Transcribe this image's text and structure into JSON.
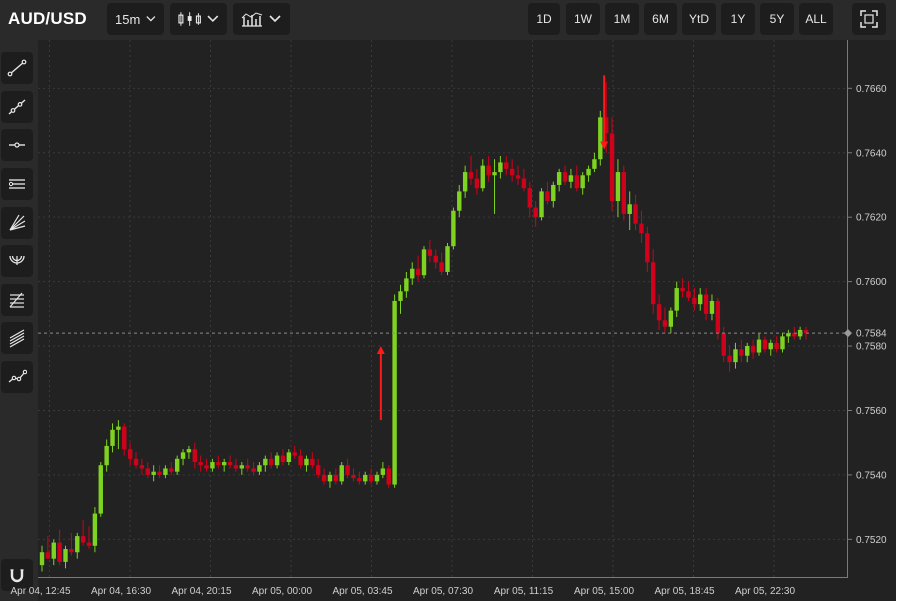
{
  "header": {
    "symbol": "AUD/USD",
    "interval": "15m",
    "chart_type_icon": "candlestick-icon",
    "indicator_icon": "indicators-icon",
    "ranges": [
      "1D",
      "1W",
      "1M",
      "6M",
      "YtD",
      "1Y",
      "5Y",
      "ALL"
    ],
    "fullscreen_icon": "fullscreen-icon"
  },
  "toolbar": {
    "tools": [
      "trend-line-icon",
      "ray-icon",
      "horizontal-line-icon",
      "parallel-channel-icon",
      "fan-icon",
      "arc-icon",
      "fibonacci-icon",
      "pitchfork-icon",
      "path-icon"
    ],
    "magnet_icon": "magnet-icon"
  },
  "colors": {
    "background": "#222222",
    "up": "#7ed321",
    "down": "#d0021b",
    "arrow": "#ff1a1a",
    "text": "#cfcfcf"
  },
  "chart_data": {
    "type": "candlestick",
    "symbol": "AUD/USD",
    "interval": "15m",
    "ylim": [
      0.7508,
      0.7675
    ],
    "y_ticks": [
      "0.7520",
      "0.7540",
      "0.7560",
      "0.7580",
      "0.7600",
      "0.7620",
      "0.7640",
      "0.7660"
    ],
    "x_ticks": [
      "Apr 04, 12:45",
      "Apr 04, 16:30",
      "Apr 04, 20:15",
      "Apr 05, 00:00",
      "Apr 05, 03:45",
      "Apr 05, 07:30",
      "Apr 05, 11:15",
      "Apr 05, 15:00",
      "Apr 05, 18:45",
      "Apr 05, 22:30"
    ],
    "current_price": "0.7584",
    "current_price_value": 0.7584,
    "grid": true,
    "candles": [
      [
        0.7512,
        0.7518,
        0.751,
        0.7516
      ],
      [
        0.7516,
        0.7521,
        0.7514,
        0.7514
      ],
      [
        0.7514,
        0.752,
        0.7512,
        0.7519
      ],
      [
        0.7519,
        0.7523,
        0.7512,
        0.7513
      ],
      [
        0.7513,
        0.7518,
        0.7511,
        0.7517
      ],
      [
        0.7517,
        0.7522,
        0.7515,
        0.7516
      ],
      [
        0.7516,
        0.7522,
        0.7514,
        0.7521
      ],
      [
        0.7521,
        0.7526,
        0.7518,
        0.7519
      ],
      [
        0.7519,
        0.7524,
        0.7517,
        0.7518
      ],
      [
        0.7518,
        0.753,
        0.7516,
        0.7528
      ],
      [
        0.7528,
        0.7544,
        0.7527,
        0.7543
      ],
      [
        0.7543,
        0.7551,
        0.7541,
        0.7549
      ],
      [
        0.7549,
        0.7556,
        0.7547,
        0.7554
      ],
      [
        0.7554,
        0.7557,
        0.7548,
        0.7555
      ],
      [
        0.7555,
        0.7556,
        0.7546,
        0.7548
      ],
      [
        0.7548,
        0.755,
        0.7543,
        0.7545
      ],
      [
        0.7545,
        0.7547,
        0.7542,
        0.7543
      ],
      [
        0.7543,
        0.7545,
        0.754,
        0.7542
      ],
      [
        0.7542,
        0.7544,
        0.7539,
        0.754
      ],
      [
        0.754,
        0.7543,
        0.7538,
        0.7541
      ],
      [
        0.7541,
        0.7543,
        0.7539,
        0.754
      ],
      [
        0.754,
        0.7543,
        0.7539,
        0.7542
      ],
      [
        0.7542,
        0.7544,
        0.754,
        0.7541
      ],
      [
        0.7541,
        0.7546,
        0.754,
        0.7545
      ],
      [
        0.7545,
        0.7548,
        0.7543,
        0.7547
      ],
      [
        0.7547,
        0.7549,
        0.7545,
        0.7548
      ],
      [
        0.7548,
        0.755,
        0.7542,
        0.7544
      ],
      [
        0.7544,
        0.7546,
        0.7541,
        0.7543
      ],
      [
        0.7543,
        0.7545,
        0.7541,
        0.7542
      ],
      [
        0.7542,
        0.7545,
        0.7541,
        0.7544
      ],
      [
        0.7544,
        0.7546,
        0.7542,
        0.7543
      ],
      [
        0.7543,
        0.7545,
        0.7541,
        0.7544
      ],
      [
        0.7544,
        0.7546,
        0.7542,
        0.7543
      ],
      [
        0.7543,
        0.7545,
        0.7541,
        0.7542
      ],
      [
        0.7542,
        0.7544,
        0.754,
        0.7543
      ],
      [
        0.7543,
        0.7545,
        0.7541,
        0.7542
      ],
      [
        0.7542,
        0.7544,
        0.754,
        0.7541
      ],
      [
        0.7541,
        0.7544,
        0.754,
        0.7543
      ],
      [
        0.7543,
        0.7546,
        0.7541,
        0.7545
      ],
      [
        0.7545,
        0.7547,
        0.7542,
        0.7543
      ],
      [
        0.7543,
        0.7547,
        0.7542,
        0.7546
      ],
      [
        0.7546,
        0.7548,
        0.7543,
        0.7544
      ],
      [
        0.7544,
        0.7548,
        0.7543,
        0.7547
      ],
      [
        0.7547,
        0.7549,
        0.7545,
        0.7546
      ],
      [
        0.7546,
        0.7548,
        0.7542,
        0.7543
      ],
      [
        0.7543,
        0.7546,
        0.7541,
        0.7545
      ],
      [
        0.7545,
        0.7547,
        0.7542,
        0.7543
      ],
      [
        0.7543,
        0.7545,
        0.7539,
        0.754
      ],
      [
        0.754,
        0.7542,
        0.7537,
        0.7538
      ],
      [
        0.7538,
        0.7541,
        0.7536,
        0.754
      ],
      [
        0.754,
        0.7542,
        0.7537,
        0.7538
      ],
      [
        0.7538,
        0.7544,
        0.7537,
        0.7543
      ],
      [
        0.7543,
        0.7545,
        0.7539,
        0.754
      ],
      [
        0.754,
        0.7542,
        0.7538,
        0.7539
      ],
      [
        0.7539,
        0.7541,
        0.7537,
        0.7538
      ],
      [
        0.7538,
        0.7541,
        0.7537,
        0.754
      ],
      [
        0.754,
        0.7542,
        0.7537,
        0.7538
      ],
      [
        0.7538,
        0.7541,
        0.7537,
        0.754
      ],
      [
        0.754,
        0.7544,
        0.7539,
        0.7542
      ],
      [
        0.7542,
        0.7543,
        0.7536,
        0.7537
      ],
      [
        0.7537,
        0.7596,
        0.7536,
        0.7594
      ],
      [
        0.7594,
        0.7599,
        0.759,
        0.7597
      ],
      [
        0.7597,
        0.7603,
        0.7595,
        0.7601
      ],
      [
        0.7601,
        0.7606,
        0.7599,
        0.7604
      ],
      [
        0.7604,
        0.7608,
        0.76,
        0.7602
      ],
      [
        0.7602,
        0.7611,
        0.7601,
        0.761
      ],
      [
        0.761,
        0.7613,
        0.7606,
        0.7608
      ],
      [
        0.7608,
        0.761,
        0.7604,
        0.7606
      ],
      [
        0.7606,
        0.7609,
        0.7602,
        0.7603
      ],
      [
        0.7603,
        0.7612,
        0.7602,
        0.7611
      ],
      [
        0.7611,
        0.7623,
        0.761,
        0.7622
      ],
      [
        0.7622,
        0.763,
        0.762,
        0.7628
      ],
      [
        0.7628,
        0.7636,
        0.7626,
        0.7634
      ],
      [
        0.7634,
        0.7639,
        0.763,
        0.7632
      ],
      [
        0.7632,
        0.7635,
        0.7627,
        0.7629
      ],
      [
        0.7629,
        0.7638,
        0.7628,
        0.7636
      ],
      [
        0.7636,
        0.7639,
        0.7631,
        0.7633
      ],
      [
        0.7633,
        0.7638,
        0.7621,
        0.7634
      ],
      [
        0.7634,
        0.7639,
        0.7632,
        0.7637
      ],
      [
        0.7637,
        0.7639,
        0.7633,
        0.7635
      ],
      [
        0.7635,
        0.7638,
        0.7631,
        0.7633
      ],
      [
        0.7633,
        0.7636,
        0.763,
        0.7632
      ],
      [
        0.7632,
        0.7635,
        0.7628,
        0.7629
      ],
      [
        0.7629,
        0.7631,
        0.762,
        0.7623
      ],
      [
        0.7623,
        0.7625,
        0.7617,
        0.762
      ],
      [
        0.762,
        0.7629,
        0.7619,
        0.7628
      ],
      [
        0.7628,
        0.7631,
        0.7624,
        0.7625
      ],
      [
        0.7625,
        0.7631,
        0.7623,
        0.763
      ],
      [
        0.763,
        0.7635,
        0.7628,
        0.7634
      ],
      [
        0.7634,
        0.7636,
        0.763,
        0.7631
      ],
      [
        0.7631,
        0.7635,
        0.7629,
        0.7633
      ],
      [
        0.7633,
        0.7636,
        0.7628,
        0.7629
      ],
      [
        0.7629,
        0.7634,
        0.7627,
        0.7633
      ],
      [
        0.7633,
        0.7636,
        0.7631,
        0.7635
      ],
      [
        0.7635,
        0.764,
        0.7634,
        0.7638
      ],
      [
        0.7638,
        0.7653,
        0.7636,
        0.7651
      ],
      [
        0.7651,
        0.7662,
        0.764,
        0.7646
      ],
      [
        0.7646,
        0.7651,
        0.7622,
        0.7625
      ],
      [
        0.7625,
        0.7638,
        0.762,
        0.7634
      ],
      [
        0.7634,
        0.7636,
        0.7619,
        0.7621
      ],
      [
        0.7621,
        0.7628,
        0.7616,
        0.7624
      ],
      [
        0.7624,
        0.7627,
        0.7616,
        0.7618
      ],
      [
        0.7618,
        0.7622,
        0.7612,
        0.7615
      ],
      [
        0.7615,
        0.7617,
        0.7603,
        0.7606
      ],
      [
        0.7606,
        0.761,
        0.759,
        0.7593
      ],
      [
        0.7593,
        0.7596,
        0.7585,
        0.7588
      ],
      [
        0.7588,
        0.7592,
        0.7584,
        0.7586
      ],
      [
        0.7586,
        0.7592,
        0.7584,
        0.7591
      ],
      [
        0.7591,
        0.76,
        0.7589,
        0.7598
      ],
      [
        0.7598,
        0.7601,
        0.7595,
        0.7597
      ],
      [
        0.7597,
        0.76,
        0.7594,
        0.7595
      ],
      [
        0.7595,
        0.7598,
        0.7591,
        0.7593
      ],
      [
        0.7593,
        0.7598,
        0.7591,
        0.7596
      ],
      [
        0.7596,
        0.7598,
        0.7588,
        0.759
      ],
      [
        0.759,
        0.7596,
        0.7588,
        0.7594
      ],
      [
        0.7594,
        0.7595,
        0.7582,
        0.7584
      ],
      [
        0.7584,
        0.7586,
        0.7575,
        0.7577
      ],
      [
        0.7577,
        0.758,
        0.7572,
        0.7575
      ],
      [
        0.7575,
        0.7581,
        0.7573,
        0.7579
      ],
      [
        0.7579,
        0.7582,
        0.7575,
        0.7577
      ],
      [
        0.7577,
        0.7581,
        0.7575,
        0.758
      ],
      [
        0.758,
        0.7582,
        0.7576,
        0.7578
      ],
      [
        0.7578,
        0.7584,
        0.7577,
        0.7582
      ],
      [
        0.7582,
        0.7583,
        0.7578,
        0.7579
      ],
      [
        0.7579,
        0.7582,
        0.7577,
        0.7581
      ],
      [
        0.7581,
        0.7583,
        0.7578,
        0.7579
      ],
      [
        0.7579,
        0.7584,
        0.7578,
        0.7583
      ],
      [
        0.7583,
        0.7585,
        0.7581,
        0.7584
      ],
      [
        0.7584,
        0.7586,
        0.7582,
        0.7583
      ],
      [
        0.7583,
        0.7586,
        0.7582,
        0.7585
      ],
      [
        0.7585,
        0.7586,
        0.7582,
        0.7584
      ]
    ],
    "annotations": [
      {
        "type": "arrow-up",
        "candle": 58,
        "from": 0.7557,
        "to": 0.758
      },
      {
        "type": "arrow-down",
        "candle": 96,
        "from": 0.7664,
        "to": 0.7641
      }
    ]
  }
}
